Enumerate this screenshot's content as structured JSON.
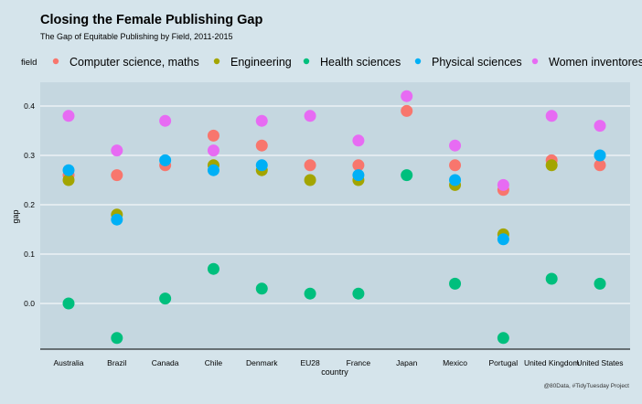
{
  "colors": {
    "page_bg": "#d5e4eb",
    "panel_bg": "#c5d7e0",
    "grid": "#ffffff"
  },
  "chart_data": {
    "type": "scatter",
    "title": "Closing the Female Publishing Gap",
    "subtitle": "The Gap of Equitable Publishing by Field, 2011-2015",
    "xlabel": "country",
    "ylabel": "gap",
    "legend_title": "field",
    "legend_position": "top",
    "caption": "@80Data, #TidyTuesday Project",
    "ylim": [
      -0.09,
      0.45
    ],
    "yticks": [
      0.0,
      0.1,
      0.2,
      0.3,
      0.4
    ],
    "ytick_labels": [
      "0.0",
      "0.1",
      "0.2",
      "0.3",
      "0.4"
    ],
    "grid": true,
    "categories": [
      "Australia",
      "Brazil",
      "Canada",
      "Chile",
      "Denmark",
      "EU28",
      "France",
      "Japan",
      "Mexico",
      "Portugal",
      "United Kingdom",
      "United States"
    ],
    "series": [
      {
        "name": "Computer science, maths",
        "color": "#f8766d",
        "values": [
          0.26,
          0.26,
          0.28,
          0.34,
          0.32,
          0.28,
          0.28,
          0.39,
          0.28,
          0.23,
          0.29,
          0.28
        ]
      },
      {
        "name": "Engineering",
        "color": "#a3a500",
        "values": [
          0.25,
          0.18,
          null,
          0.28,
          0.27,
          0.25,
          0.25,
          null,
          0.24,
          0.14,
          0.28,
          null
        ]
      },
      {
        "name": "Health sciences",
        "color": "#00bf7d",
        "values": [
          0.0,
          -0.07,
          0.01,
          0.07,
          0.03,
          0.02,
          0.02,
          0.26,
          0.04,
          -0.07,
          0.05,
          0.04
        ]
      },
      {
        "name": "Physical sciences",
        "color": "#00b0f6",
        "values": [
          0.27,
          0.17,
          0.29,
          0.27,
          0.28,
          null,
          0.26,
          null,
          0.25,
          0.13,
          null,
          0.3
        ]
      },
      {
        "name": "Women inventores",
        "color": "#e76bf3",
        "values": [
          0.38,
          0.31,
          0.37,
          0.31,
          0.37,
          0.38,
          0.33,
          0.42,
          0.32,
          0.24,
          0.38,
          0.36
        ]
      }
    ]
  }
}
